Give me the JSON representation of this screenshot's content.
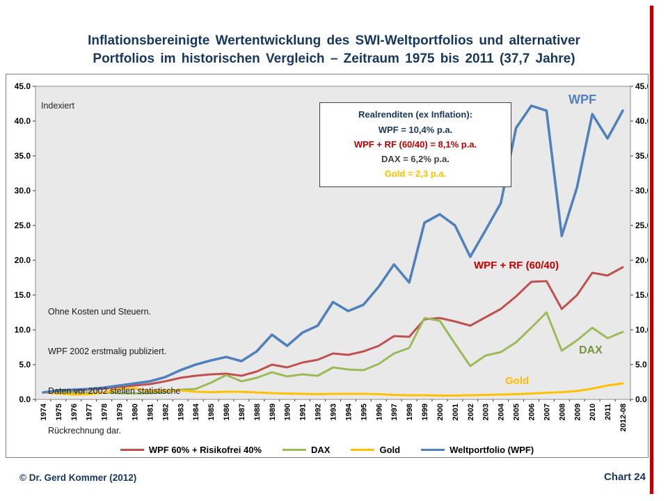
{
  "slide": {
    "title_line1": "Inflationsbereinigte Wertentwicklung des SWI-Weltportfolios und alternativer",
    "title_line2": "Portfolios im historischen Vergleich – Zeitraum 1975 bis 2011 (37,7 Jahre)",
    "footer_left": "© Dr. Gerd Kommer (2012)",
    "footer_right": "Chart 24",
    "title_color": "#17365D",
    "accent_red": "#C00000"
  },
  "chart_data": {
    "type": "line",
    "title": "Inflationsbereinigte Wertentwicklung des SWI-Weltportfolios und alternativer Portfolios im historischen Vergleich – Zeitraum 1975 bis 2011 (37,7 Jahre)",
    "xlabel": "",
    "ylabel": "",
    "ylim": [
      0,
      45
    ],
    "yticks": [
      0,
      5,
      10,
      15,
      20,
      25,
      30,
      35,
      40,
      45
    ],
    "grid": false,
    "legend_position": "bottom",
    "plot_bg": "#E9E9E9",
    "x": [
      "1974",
      "1975",
      "1976",
      "1977",
      "1978",
      "1979",
      "1980",
      "1981",
      "1982",
      "1983",
      "1984",
      "1985",
      "1986",
      "1987",
      "1988",
      "1989",
      "1990",
      "1991",
      "1992",
      "1993",
      "1994",
      "1995",
      "1996",
      "1997",
      "1998",
      "1999",
      "2000",
      "2001",
      "2002",
      "2003",
      "2004",
      "2005",
      "2006",
      "2007",
      "2008",
      "2009",
      "2010",
      "2011",
      "2012-08"
    ],
    "series": [
      {
        "name": "WPF 60% + Risikofrei 40%",
        "color": "#C0504D",
        "values": [
          1.0,
          1.2,
          1.3,
          1.4,
          1.55,
          1.8,
          2.0,
          2.2,
          2.6,
          3.1,
          3.4,
          3.6,
          3.7,
          3.4,
          4.0,
          5.0,
          4.6,
          5.3,
          5.7,
          6.6,
          6.4,
          6.9,
          7.7,
          9.1,
          9.0,
          11.5,
          11.7,
          11.2,
          10.6,
          11.8,
          13.0,
          14.8,
          16.9,
          17.0,
          13.0,
          15.0,
          18.2,
          17.8,
          19.0
        ]
      },
      {
        "name": "DAX",
        "color": "#9BBB59",
        "values": [
          1.0,
          1.1,
          1.0,
          1.0,
          1.0,
          0.9,
          0.85,
          0.9,
          1.0,
          1.4,
          1.5,
          2.4,
          3.5,
          2.6,
          3.1,
          3.9,
          3.3,
          3.6,
          3.4,
          4.6,
          4.3,
          4.2,
          5.1,
          6.6,
          7.4,
          11.7,
          11.3,
          8.0,
          4.8,
          6.3,
          6.8,
          8.2,
          10.3,
          12.5,
          7.0,
          8.5,
          10.3,
          8.8,
          9.7
        ]
      },
      {
        "name": "Gold",
        "color": "#FFC000",
        "values": [
          1.0,
          0.85,
          0.7,
          0.75,
          1.0,
          1.5,
          1.6,
          1.2,
          1.3,
          1.3,
          1.1,
          1.05,
          1.1,
          1.1,
          1.0,
          0.9,
          0.85,
          0.8,
          0.75,
          0.8,
          0.8,
          0.8,
          0.75,
          0.65,
          0.6,
          0.6,
          0.55,
          0.55,
          0.6,
          0.65,
          0.7,
          0.75,
          0.85,
          0.95,
          1.05,
          1.2,
          1.55,
          2.0,
          2.3
        ]
      },
      {
        "name": "Weltportfolio (WPF)",
        "color": "#4F81BD",
        "values": [
          1.0,
          1.3,
          1.4,
          1.5,
          1.7,
          2.0,
          2.3,
          2.6,
          3.2,
          4.2,
          5.0,
          5.6,
          6.1,
          5.5,
          6.9,
          9.3,
          7.7,
          9.6,
          10.6,
          14.0,
          12.7,
          13.6,
          16.2,
          19.4,
          16.8,
          25.4,
          26.6,
          25.0,
          20.5,
          24.3,
          28.2,
          39.0,
          42.2,
          41.5,
          23.5,
          30.5,
          41.0,
          37.5,
          41.5
        ]
      }
    ]
  },
  "annotations": {
    "indexiert": "Indexiert",
    "note_lines": [
      "Ohne Kosten und Steuern.",
      "WPF 2002 erstmalig publiziert.",
      "Daten vor 2002 stellen statistische",
      "Rückrechnung dar."
    ],
    "realrenditen": {
      "title": "Realrenditen (ex Inflation):",
      "title_color": "#17365D",
      "lines": [
        {
          "text": "WPF = 10,4% p.a.",
          "color": "#17365D"
        },
        {
          "text": "WPF + RF  (60/40) =  8,1% p.a.",
          "color": "#C00000"
        },
        {
          "text": "DAX =  6,2% p.a.",
          "color": "#404040"
        },
        {
          "text": "Gold =  2,3 p.a.",
          "color": "#FFC000"
        }
      ]
    },
    "series_labels": [
      {
        "text": "WPF",
        "color": "#4F81BD"
      },
      {
        "text": "WPF + RF (60/40)",
        "color": "#C00000"
      },
      {
        "text": "DAX",
        "color": "#77933C"
      },
      {
        "text": "Gold",
        "color": "#FFC000"
      }
    ]
  }
}
